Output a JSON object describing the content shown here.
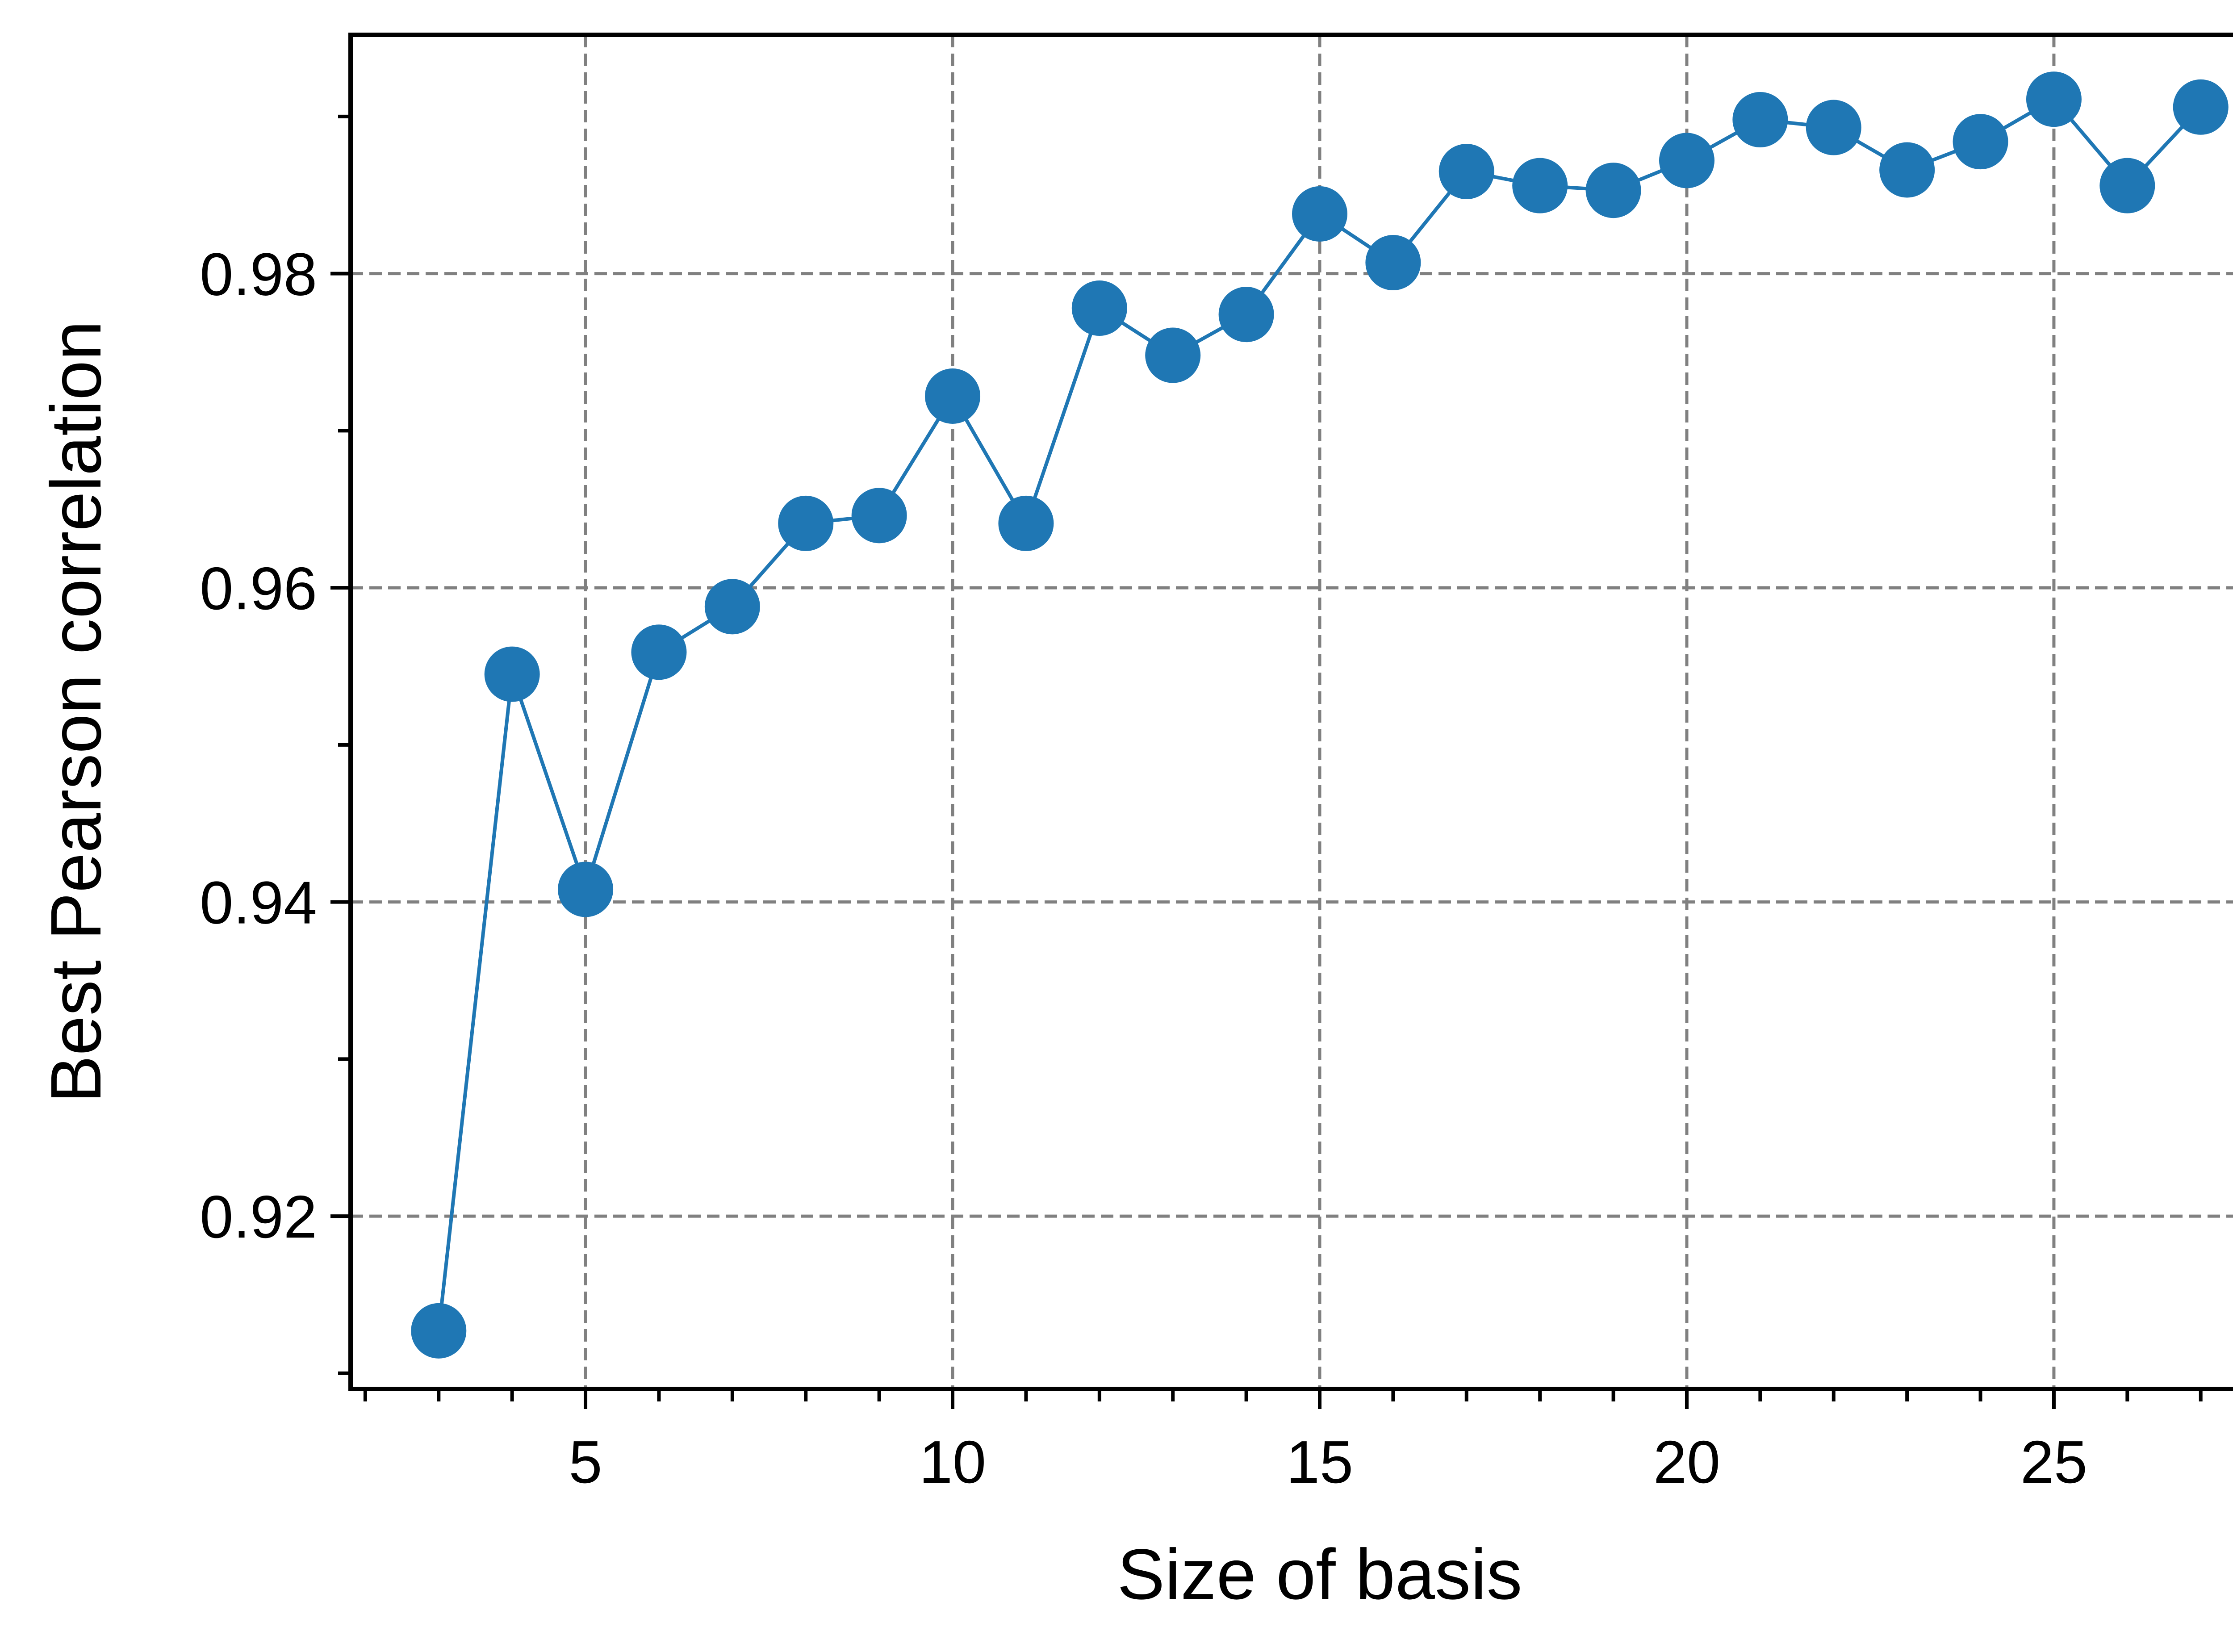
{
  "chart_data": {
    "type": "line",
    "title": "",
    "xlabel": "Size of basis",
    "ylabel": "Best Pearson correlation",
    "xlim": [
      1.8,
      28.2
    ],
    "ylim": [
      0.909,
      0.9952
    ],
    "x_ticks": [
      5,
      10,
      15,
      20,
      25
    ],
    "x_minor_ticks": [
      2,
      3,
      4,
      6,
      7,
      8,
      9,
      11,
      12,
      13,
      14,
      16,
      17,
      18,
      19,
      21,
      22,
      23,
      24,
      26,
      27,
      28
    ],
    "x_tick_labels": [
      "5",
      "10",
      "15",
      "20",
      "25"
    ],
    "y_ticks": [
      0.92,
      0.94,
      0.96,
      0.98
    ],
    "y_minor_ticks": [
      0.91,
      0.93,
      0.95,
      0.97,
      0.99
    ],
    "y_tick_labels": [
      "0.92",
      "0.94",
      "0.96",
      "0.98"
    ],
    "grid": true,
    "legend": "none",
    "series": [
      {
        "color": "#1f77b4",
        "marker": "circle",
        "x": [
          3,
          4,
          5,
          6,
          7,
          8,
          9,
          10,
          11,
          12,
          13,
          14,
          15,
          16,
          17,
          18,
          19,
          20,
          21,
          22,
          23,
          24,
          25,
          26,
          27
        ],
        "y": [
          0.9127,
          0.9545,
          0.9408,
          0.9559,
          0.9588,
          0.9641,
          0.9646,
          0.9722,
          0.9641,
          0.9778,
          0.9748,
          0.9774,
          0.9838,
          0.9807,
          0.9865,
          0.9856,
          0.9853,
          0.9872,
          0.9898,
          0.9893,
          0.9866,
          0.9884,
          0.9911,
          0.9856,
          0.9906
        ]
      }
    ]
  }
}
